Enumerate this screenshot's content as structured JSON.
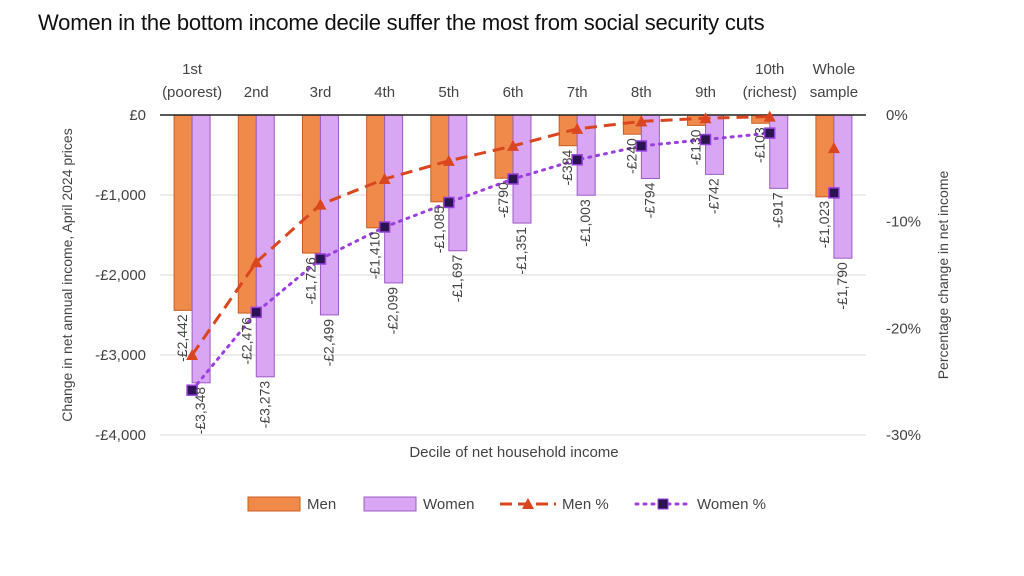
{
  "chart_data": {
    "type": "bar",
    "title": "Women in the bottom income decile suffer the most from social security cuts",
    "xlabel": "Decile of net household income",
    "ylabel": "Change in net annual income, April 2024 prices",
    "y2label": "Percentage change in net income",
    "ylim": [
      -4000,
      0
    ],
    "y2lim": [
      -30,
      0
    ],
    "y_ticks": [
      0,
      -1000,
      -2000,
      -3000,
      -4000
    ],
    "y_tick_labels": [
      "£0",
      "-£1,000",
      "-£2,000",
      "-£3,000",
      "-£4,000"
    ],
    "y2_ticks": [
      0,
      -10,
      -20,
      -30
    ],
    "y2_tick_labels": [
      "0%",
      "-10%",
      "-20%",
      "-30%"
    ],
    "categories": [
      [
        "1st",
        "(poorest)"
      ],
      [
        "2nd"
      ],
      [
        "3rd"
      ],
      [
        "4th"
      ],
      [
        "5th"
      ],
      [
        "6th"
      ],
      [
        "7th"
      ],
      [
        "8th"
      ],
      [
        "9th"
      ],
      [
        "10th",
        "(richest)"
      ],
      [
        "Whole",
        "sample"
      ]
    ],
    "series": [
      {
        "name": "Men",
        "kind": "bar",
        "color": "#f08a4b",
        "stroke": "#c85d1e",
        "values": [
          -2442,
          -2476,
          -1726,
          -1410,
          -1085,
          -790,
          -384,
          -240,
          -130,
          -103,
          -1023
        ],
        "labels": [
          "-£2,442",
          "-£2,476",
          "-£1,726",
          "-£1,410",
          "-£1,085",
          "-£790",
          "-£384",
          "-£240",
          "-£130",
          "-£103",
          "-£1,023"
        ]
      },
      {
        "name": "Women",
        "kind": "bar",
        "color": "#d8a6f2",
        "stroke": "#9d5cc4",
        "values": [
          -3348,
          -3273,
          -2499,
          -2099,
          -1697,
          -1351,
          -1003,
          -794,
          -742,
          -917,
          -1790
        ],
        "labels": [
          "-£3,348",
          "-£3,273",
          "-£2,499",
          "-£2,099",
          "-£1,697",
          "-£1,351",
          "-£1,003",
          "-£794",
          "-£742",
          "-£917",
          "-£1,790"
        ]
      },
      {
        "name": "Men %",
        "kind": "line",
        "axis": "right",
        "color": "#d9461f",
        "marker": "triangle",
        "values": [
          -22.5,
          -13.8,
          -8.4,
          -6.0,
          -4.3,
          -2.9,
          -1.3,
          -0.6,
          -0.3,
          -0.15,
          -3.1
        ]
      },
      {
        "name": "Women %",
        "kind": "line",
        "axis": "right",
        "color": "#9b3fe0",
        "marker": "square",
        "values": [
          -25.8,
          -18.5,
          -13.5,
          -10.5,
          -8.2,
          -6.0,
          -4.2,
          -2.9,
          -2.3,
          -1.7,
          -7.3
        ]
      }
    ],
    "legend": [
      "Men",
      "Women",
      "Men %",
      "Women %"
    ],
    "legend_position": "bottom"
  }
}
